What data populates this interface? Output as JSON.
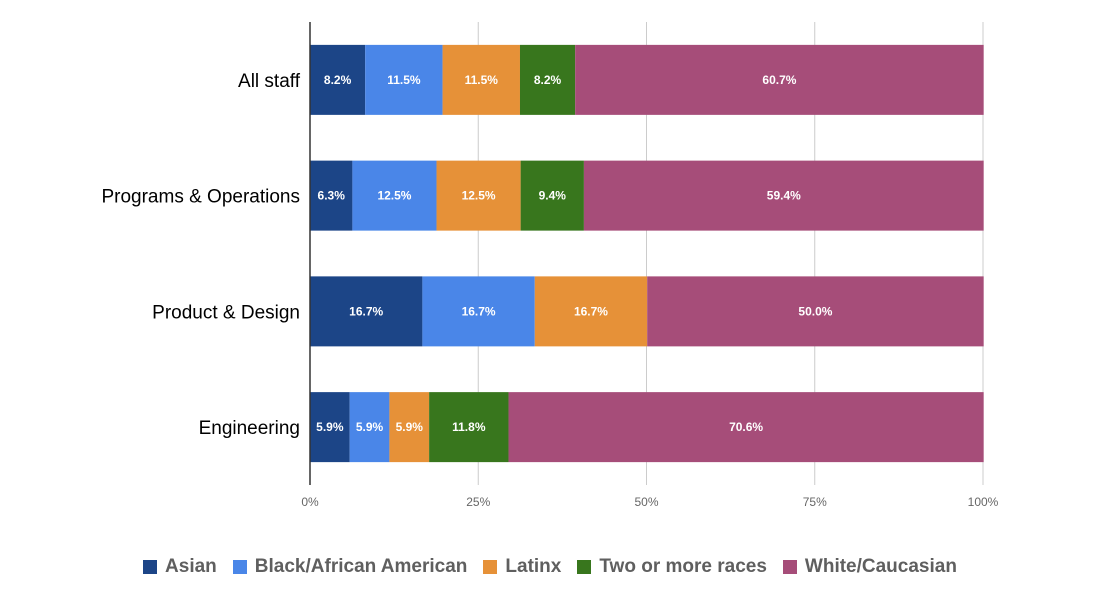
{
  "chart_data": {
    "type": "bar",
    "orientation": "horizontal",
    "stacked": true,
    "categories": [
      "All staff",
      "Programs & Operations",
      "Product & Design",
      "Engineering"
    ],
    "series": [
      {
        "name": "Asian",
        "color": "#1c4587",
        "values": [
          8.2,
          6.3,
          16.7,
          5.9
        ],
        "labels": [
          "8.2%",
          "6.3%",
          "16.7%",
          "5.9%"
        ]
      },
      {
        "name": "Black/African American",
        "color": "#4a86e8",
        "values": [
          11.5,
          12.5,
          16.7,
          5.9
        ],
        "labels": [
          "11.5%",
          "12.5%",
          "16.7%",
          "5.9%"
        ]
      },
      {
        "name": "Latinx",
        "color": "#e69138",
        "values": [
          11.5,
          12.5,
          16.7,
          5.9
        ],
        "labels": [
          "11.5%",
          "12.5%",
          "16.7%",
          "5.9%"
        ]
      },
      {
        "name": "Two or more races",
        "color": "#38761d",
        "values": [
          8.2,
          9.4,
          0,
          11.8
        ],
        "labels": [
          "8.2%",
          "9.4%",
          "",
          "11.8%"
        ]
      },
      {
        "name": "White/Caucasian",
        "color": "#a64d79",
        "values": [
          60.7,
          59.4,
          50.0,
          70.6
        ],
        "labels": [
          "60.7%",
          "59.4%",
          "50.0%",
          "70.6%"
        ]
      }
    ],
    "xticks": [
      "0%",
      "25%",
      "50%",
      "75%",
      "100%"
    ],
    "xlim": [
      0,
      100
    ],
    "grid": true,
    "legend_position": "bottom",
    "title": "",
    "xlabel": "",
    "ylabel": ""
  }
}
